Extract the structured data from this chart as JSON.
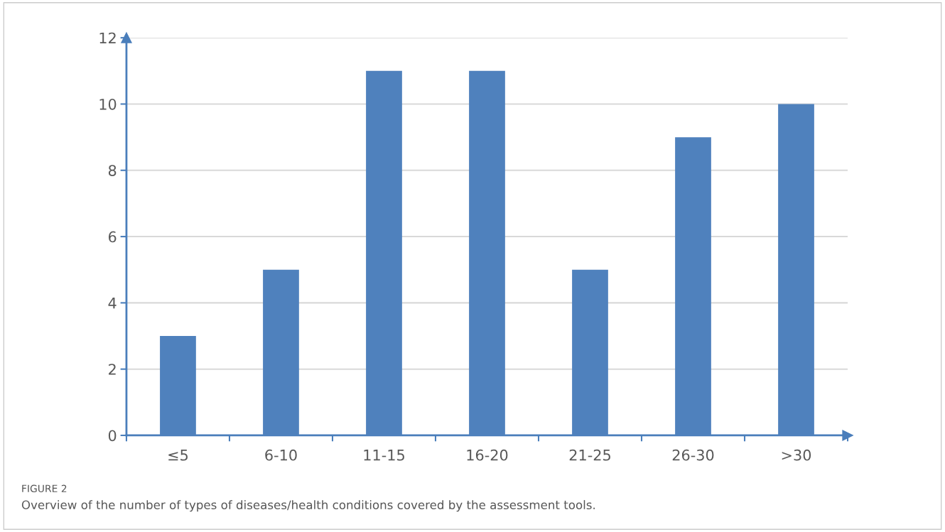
{
  "chart_data": {
    "type": "bar",
    "categories": [
      "≤5",
      "6-10",
      "11-15",
      "16-20",
      "21-25",
      "26-30",
      ">30"
    ],
    "values": [
      3,
      5,
      11,
      11,
      5,
      9,
      10
    ],
    "color": "#4f81bd",
    "ylim": [
      0,
      12
    ],
    "yticks": [
      0,
      2,
      4,
      6,
      8,
      10,
      12
    ],
    "grid": "y",
    "legend": false,
    "annotations": [
      "FIGURE 2",
      "Overview of the number of types of diseases/health conditions covered by the assessment tools."
    ]
  }
}
